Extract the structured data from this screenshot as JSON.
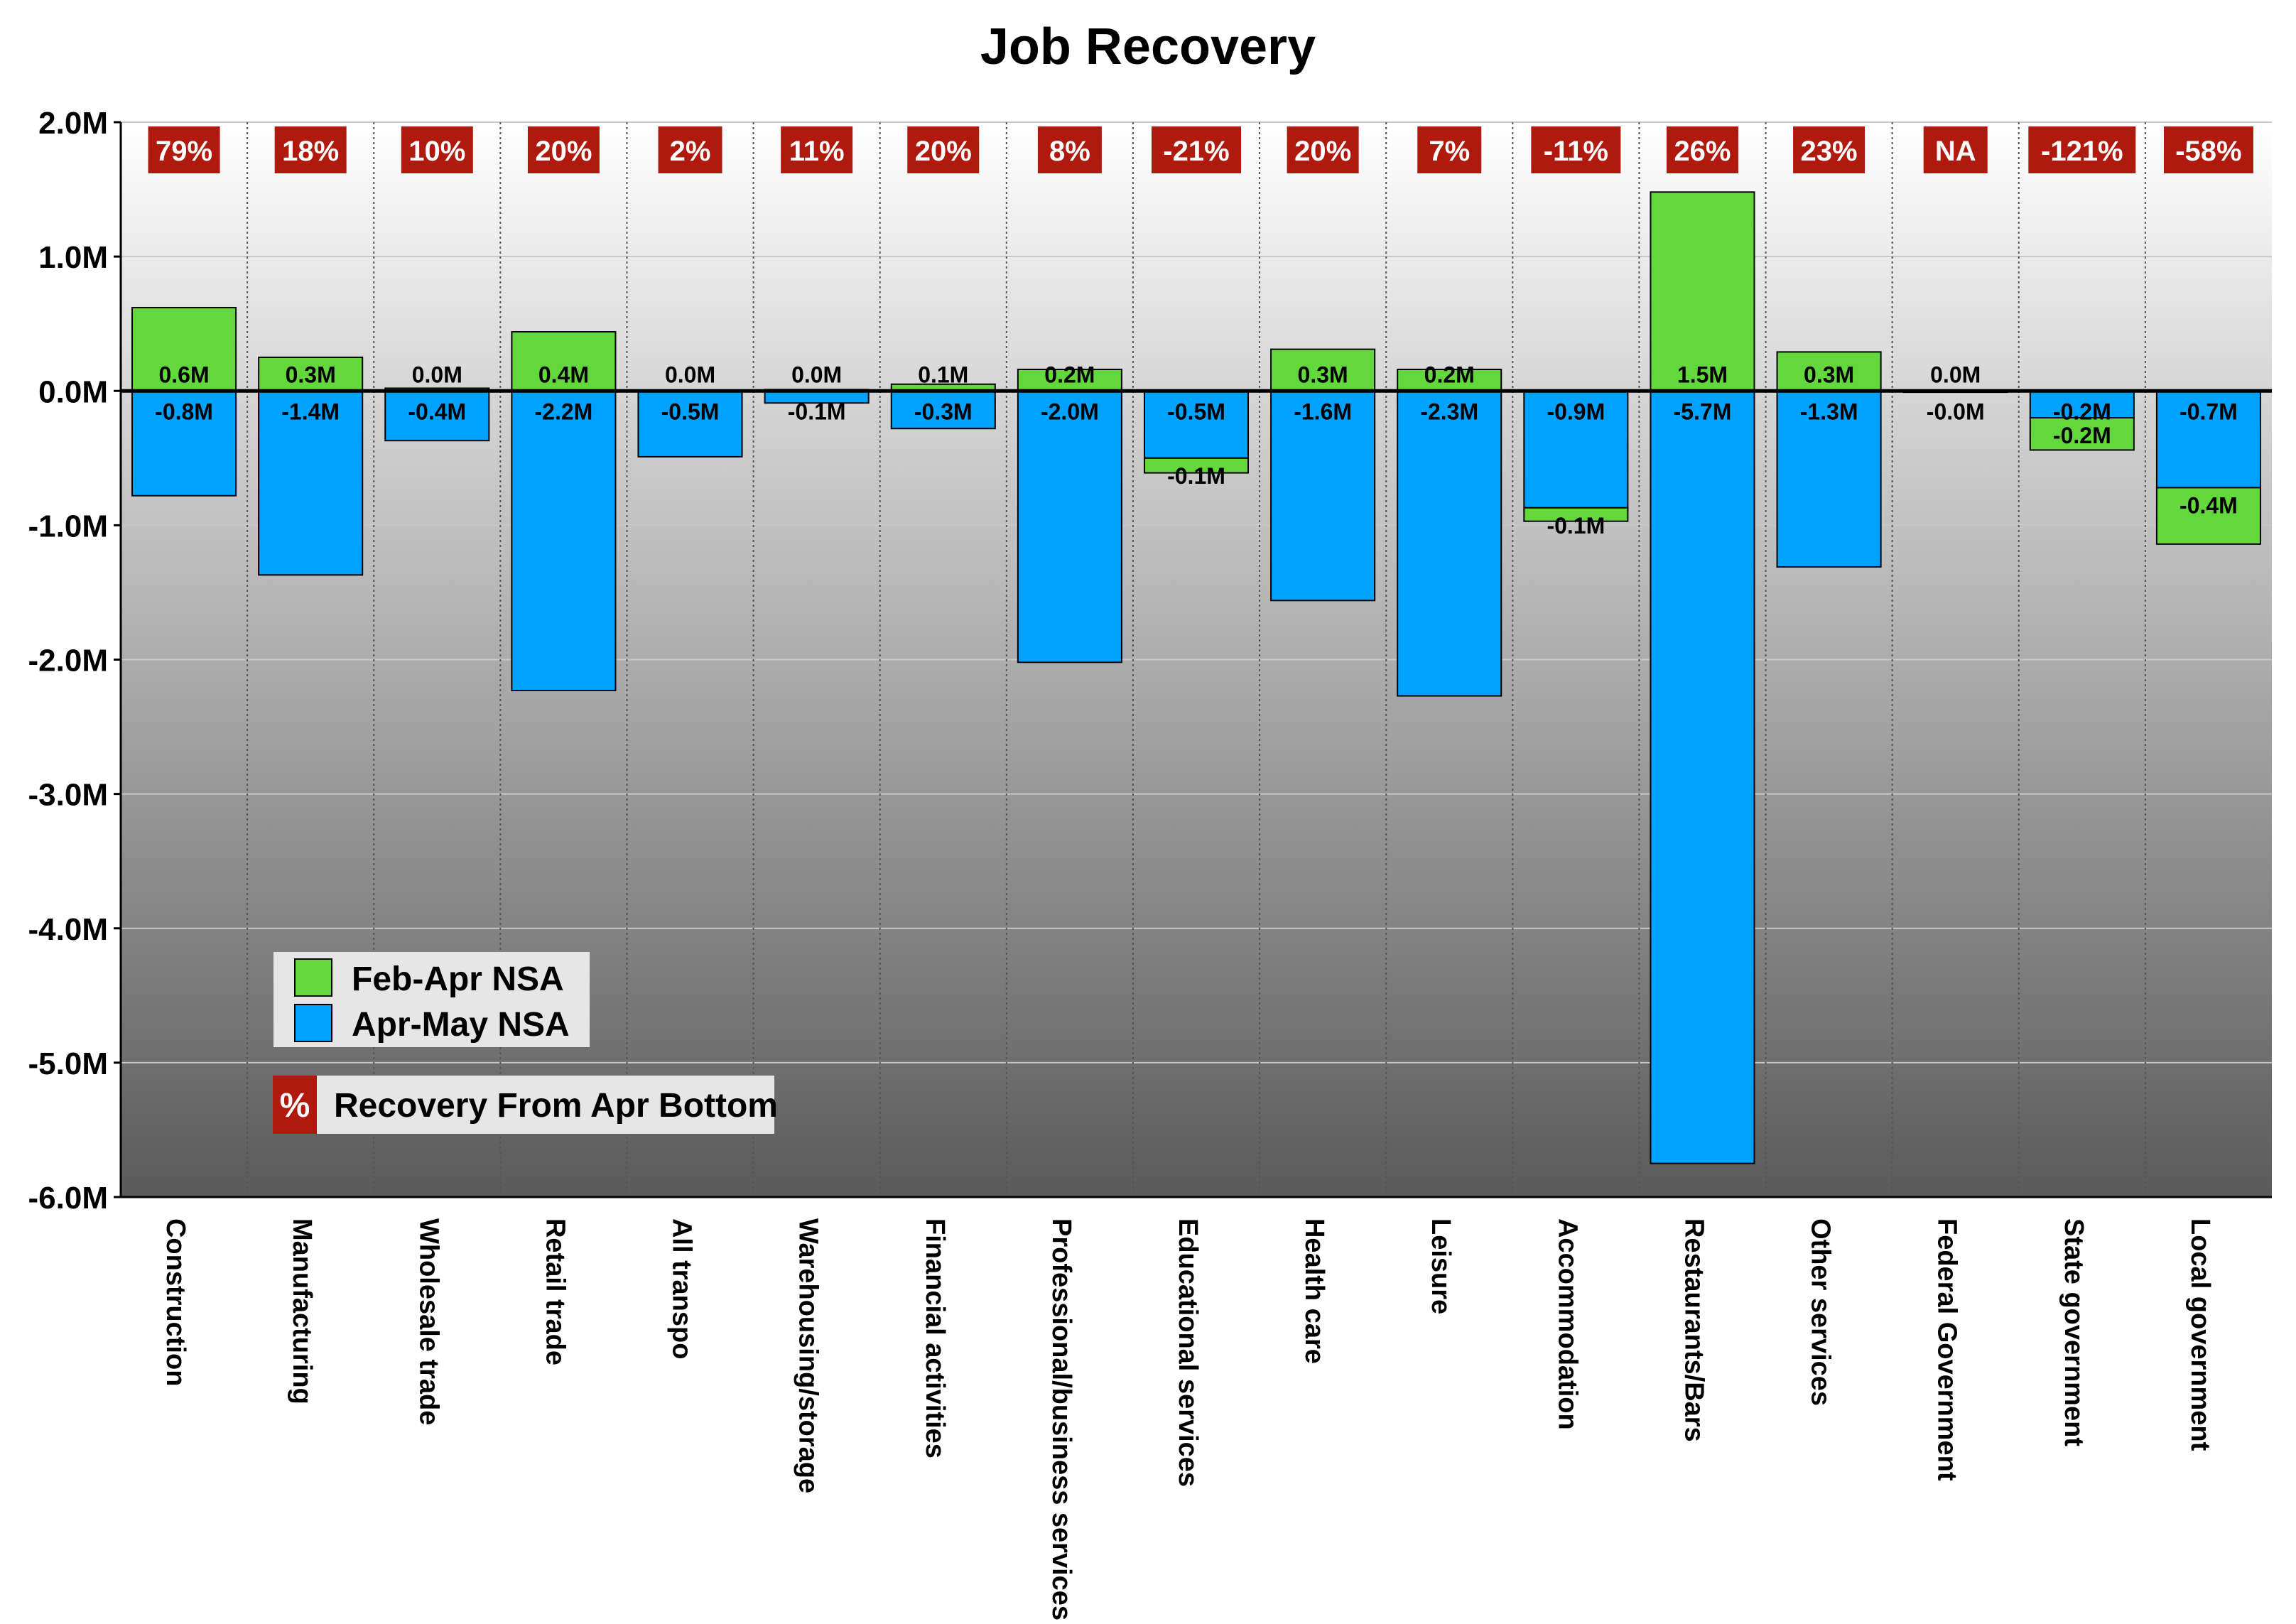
{
  "colors": {
    "feb_apr": "#63d83d",
    "apr_may": "#00a2ff",
    "pct_badge": "#b01a0e",
    "bg_top": "#ffffff",
    "bg_bottom": "#5a5a5a"
  },
  "chart_data": {
    "type": "bar",
    "title": "Job Recovery",
    "xlabel": "",
    "ylabel": "",
    "ylim": [
      -6000000,
      2000000
    ],
    "ytick_values": [
      2000000,
      1000000,
      0,
      -1000000,
      -2000000,
      -3000000,
      -4000000,
      -5000000,
      -6000000
    ],
    "ytick_labels": [
      "2.0M",
      "1.0M",
      "0.0M",
      "-1.0M",
      "-2.0M",
      "-3.0M",
      "-4.0M",
      "-5.0M",
      "-6.0M"
    ],
    "grid": true,
    "legend_position": "bottom-left",
    "categories": [
      "Construction",
      "Manufacturing",
      "Wholesale trade",
      "Retail trade",
      "All transpo",
      "Warehousing/storage",
      "Financial activities",
      "Professional/business services",
      "Educational services",
      "Health care",
      "Leisure",
      "Accommodation",
      "Restaurants/Bars",
      "Other services",
      "Federal Government",
      "State government",
      "Local government"
    ],
    "series": [
      {
        "name": "Apr-May NSA",
        "values": [
          -0.78,
          -1.37,
          -0.37,
          -2.23,
          -0.49,
          -0.09,
          -0.28,
          -2.02,
          -0.5,
          -1.56,
          -2.27,
          -0.87,
          -5.75,
          -1.31,
          -0.01,
          -0.2,
          -0.72
        ],
        "labels": [
          "-0.8M",
          "-1.4M",
          "-0.4M",
          "-2.2M",
          "-0.5M",
          "-0.1M",
          "-0.3M",
          "-2.0M",
          "-0.5M",
          "-1.6M",
          "-2.3M",
          "-0.9M",
          "-5.7M",
          "-1.3M",
          "-0.0M",
          "-0.2M",
          "-0.7M"
        ],
        "unit": "M"
      },
      {
        "name": "Feb-Apr NSA",
        "values": [
          0.62,
          0.25,
          0.02,
          0.44,
          0.0,
          0.01,
          0.05,
          0.16,
          -0.11,
          0.31,
          0.16,
          -0.1,
          1.48,
          0.29,
          0.0,
          -0.24,
          -0.42
        ],
        "labels": [
          "0.6M",
          "0.3M",
          "0.0M",
          "0.4M",
          "0.0M",
          "0.0M",
          "0.1M",
          "0.2M",
          "-0.1M",
          "0.3M",
          "0.2M",
          "-0.1M",
          "1.5M",
          "0.3M",
          "0.0M",
          "-0.2M",
          "-0.4M"
        ],
        "unit": "M"
      }
    ],
    "recovery_pct_labels": [
      "79%",
      "18%",
      "10%",
      "20%",
      "2%",
      "11%",
      "20%",
      "8%",
      "-21%",
      "20%",
      "7%",
      "-11%",
      "26%",
      "23%",
      "NA",
      "-121%",
      "-58%"
    ],
    "legend": {
      "items": [
        "Feb-Apr NSA",
        "Apr-May NSA"
      ],
      "pct_symbol": "%",
      "pct_label": "Recovery From Apr Bottom"
    }
  }
}
